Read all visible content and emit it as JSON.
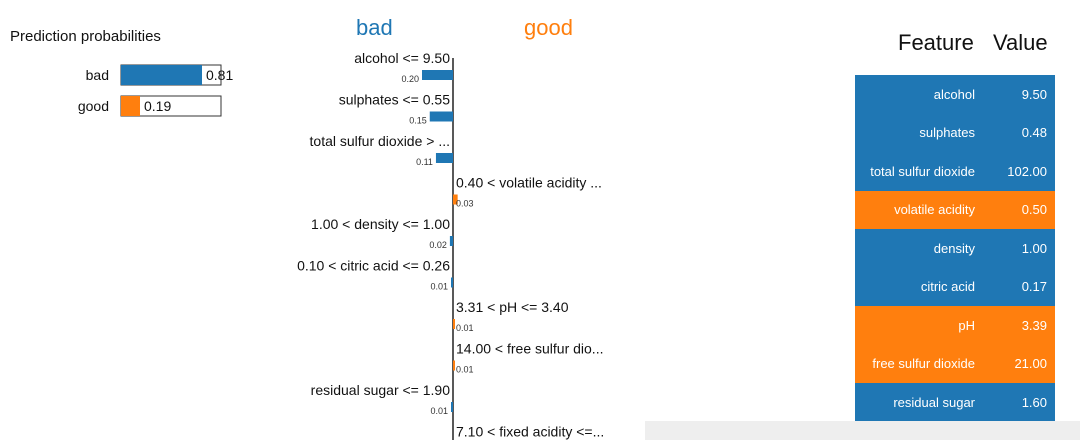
{
  "colors": {
    "bad": "#1f77b4",
    "good": "#ff7f0e"
  },
  "chart_data": [
    {
      "type": "bar",
      "title": "Prediction probabilities",
      "categories": [
        "bad",
        "good"
      ],
      "values": [
        0.81,
        0.19
      ],
      "value_labels": [
        "0.81",
        "0.19"
      ],
      "colors": [
        "#1f77b4",
        "#ff7f0e"
      ],
      "xlim": [
        0,
        1
      ]
    },
    {
      "type": "bar",
      "orientation": "horizontal",
      "class_labels": {
        "negative": "bad",
        "positive": "good"
      },
      "categories": [
        "alcohol <= 9.50",
        "sulphates <= 0.55",
        "total sulfur dioxide > ...",
        "0.40 < volatile acidity ...",
        "1.00 < density <= 1.00",
        "0.10 < citric acid <= 0.26",
        "3.31 < pH <= 3.40",
        "14.00 < free sulfur dio...",
        "residual sugar <= 1.90",
        "7.10 < fixed acidity <=..."
      ],
      "values": [
        -0.2,
        -0.15,
        -0.11,
        0.03,
        -0.02,
        -0.01,
        0.01,
        0.01,
        -0.01,
        0.01
      ],
      "value_labels": [
        "0.20",
        "0.15",
        "0.11",
        "0.03",
        "0.02",
        "0.01",
        "0.01",
        "0.01",
        "0.01",
        ""
      ]
    },
    {
      "type": "table",
      "columns": [
        "Feature",
        "Value"
      ],
      "rows": [
        {
          "feature": "alcohol",
          "value": "9.50",
          "class": "bad"
        },
        {
          "feature": "sulphates",
          "value": "0.48",
          "class": "bad"
        },
        {
          "feature": "total sulfur dioxide",
          "value": "102.00",
          "class": "bad"
        },
        {
          "feature": "volatile acidity",
          "value": "0.50",
          "class": "good"
        },
        {
          "feature": "density",
          "value": "1.00",
          "class": "bad"
        },
        {
          "feature": "citric acid",
          "value": "0.17",
          "class": "bad"
        },
        {
          "feature": "pH",
          "value": "3.39",
          "class": "good"
        },
        {
          "feature": "free sulfur dioxide",
          "value": "21.00",
          "class": "good"
        },
        {
          "feature": "residual sugar",
          "value": "1.60",
          "class": "bad"
        }
      ]
    }
  ]
}
